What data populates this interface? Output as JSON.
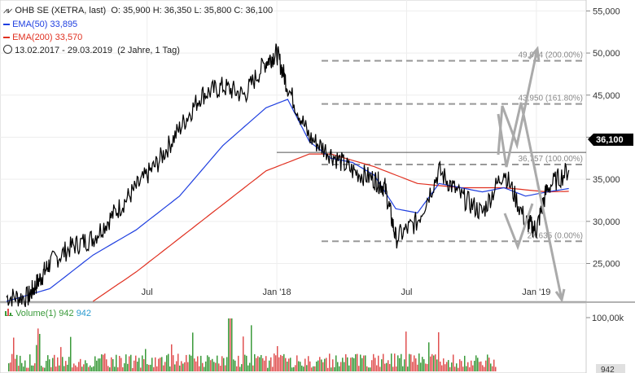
{
  "legend": {
    "title": "OHB SE (XETRA, last)",
    "ohlc": "O: 35,900  H: 36,350  L: 35,800  C: 36,100",
    "ema50_label": "EMA(50)",
    "ema50_value": "33,895",
    "ema200_label": "EMA(200)",
    "ema200_value": "33,570",
    "range": "13.02.2017 - 29.03.2019",
    "period": "(2 Jahre, 1 Tag)"
  },
  "colors": {
    "price": "#000000",
    "ema50": "#2040e0",
    "ema200": "#e03020",
    "fib": "#999999",
    "arrow": "#aaaaaa",
    "vol_up": "#3a9a3a",
    "vol_down": "#e05050",
    "last_bg": "#000000"
  },
  "last_price_label": "36,100",
  "volume": {
    "label": "Volume(1)",
    "value1": "942",
    "value2": "942",
    "axis_label": "100,00k",
    "last_badge": "942"
  },
  "chart_data": {
    "type": "line",
    "y_ticks": [
      "55,000",
      "50,000",
      "45,000",
      "40,000",
      "35,000",
      "30,000",
      "25,000"
    ],
    "y_tick_values": [
      55,
      50,
      45,
      40,
      35,
      30,
      25
    ],
    "ylim": [
      20.5,
      56.3
    ],
    "x_ticks": [
      "Jul",
      "Jan '18",
      "Jul",
      "Jan '19"
    ],
    "x_tick_index": [
      6.5,
      12.5,
      18.5,
      24.5
    ],
    "x_count": 26.5,
    "price_series": {
      "x": [
        0,
        1,
        1.5,
        2,
        3,
        4,
        5,
        6,
        7,
        8,
        9,
        10,
        11,
        12,
        12.5,
        13,
        14,
        15,
        16,
        17,
        17.5,
        18,
        19,
        20,
        21,
        22,
        23,
        24,
        24.5,
        25,
        26
      ],
      "y": [
        21,
        21,
        23,
        25,
        27,
        28,
        31,
        34,
        37,
        41,
        45,
        46,
        45,
        49,
        50,
        46,
        40,
        38,
        36,
        35,
        34,
        28,
        30,
        36,
        33,
        31,
        36,
        30,
        29,
        34,
        36.1
      ]
    },
    "ema50_series": {
      "x": [
        0,
        2,
        4,
        6,
        8,
        10,
        12,
        13,
        14,
        15,
        16,
        17,
        18,
        19,
        20,
        21,
        22,
        23,
        24,
        25,
        26
      ],
      "y": [
        20.5,
        22,
        26,
        29,
        33,
        39,
        43.5,
        44.5,
        39.5,
        37.5,
        37,
        35.5,
        31.5,
        31,
        34.5,
        34,
        33.5,
        34,
        33,
        33.5,
        33.9
      ]
    },
    "ema200_series": {
      "x": [
        4,
        6,
        8,
        10,
        12,
        14,
        15,
        17,
        19,
        21,
        23,
        25,
        26
      ],
      "y": [
        20.5,
        24,
        28,
        32,
        36,
        38,
        38,
        36.5,
        34.5,
        34,
        34,
        33.5,
        33.57
      ]
    },
    "fib_levels": [
      {
        "label": "49,084 (200.00%)",
        "value": 49.084
      },
      {
        "label": "43,950 (161.80%)",
        "value": 43.95
      },
      {
        "label": "36,757 (100.00%)",
        "value": 36.757
      },
      {
        "label": "27,635 (0.00%)",
        "value": 27.635
      }
    ],
    "resistance": 38.2
  }
}
